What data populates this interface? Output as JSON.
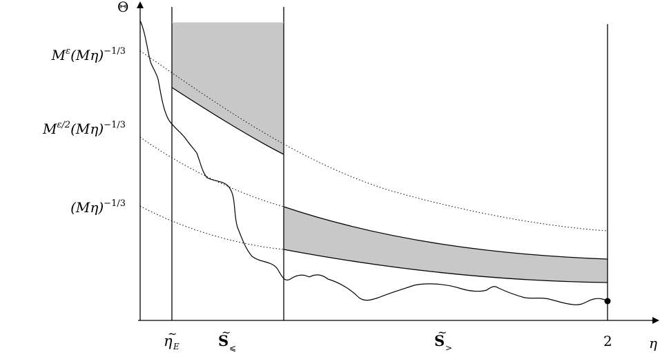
{
  "axes": {
    "y_label": "Θ",
    "x_label": "η"
  },
  "y_tick_labels": {
    "upper": {
      "base": "M",
      "sup_eps": "ε",
      "paren": "(Mη)",
      "exp": "−1/3"
    },
    "middle": {
      "base": "M",
      "sup_eps": "ε/2",
      "paren": "(Mη)",
      "exp": "−1/3"
    },
    "lower": {
      "paren": "(Mη)",
      "exp": "−1/3"
    }
  },
  "x_tick_labels": {
    "eta_e": {
      "tilde": "~",
      "main": "η",
      "sub": "E"
    },
    "s_le": {
      "tilde": "~",
      "main": "S",
      "sub": "⩽"
    },
    "s_gt": {
      "tilde": "~",
      "main": "S",
      "sub": ">"
    },
    "two": "2"
  }
}
